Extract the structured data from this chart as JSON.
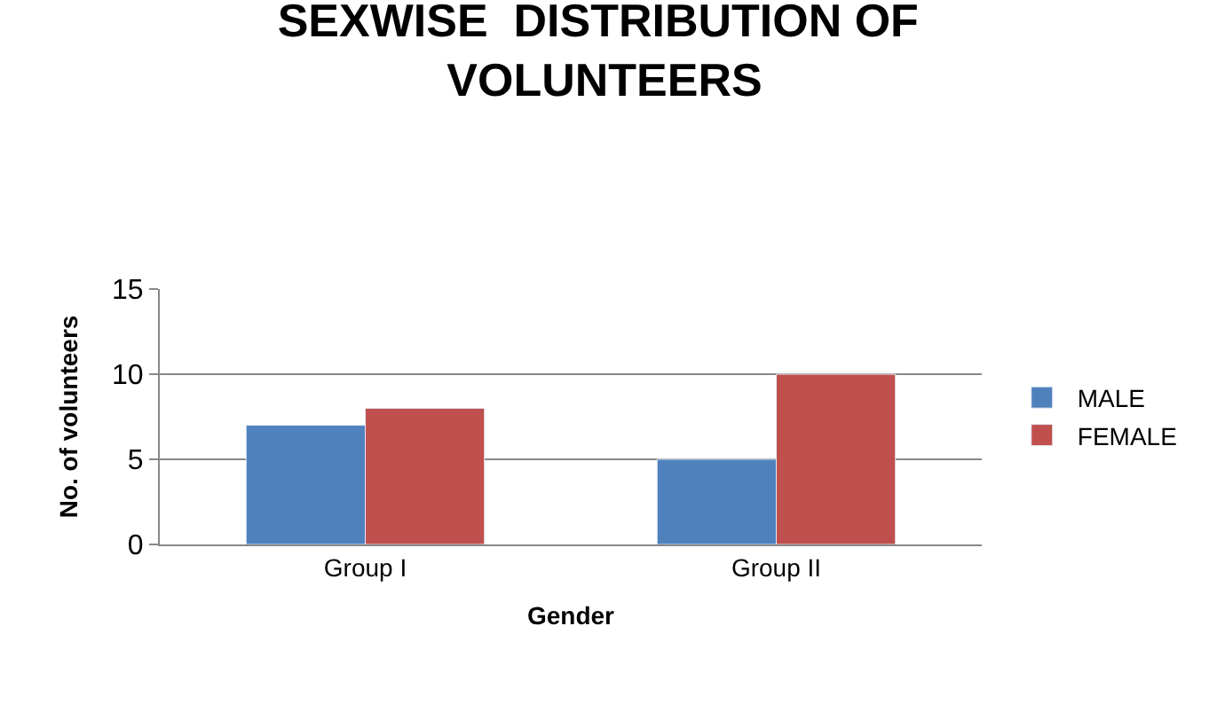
{
  "chart_data": {
    "type": "bar",
    "title": "SEXWISE  DISTRIBUTION OF VOLUNTEERS",
    "xlabel": "Gender",
    "ylabel": "No. of volunteers",
    "categories": [
      "Group I",
      "Group II"
    ],
    "series": [
      {
        "name": "MALE",
        "color": "#4f81bd",
        "values": [
          7,
          5
        ]
      },
      {
        "name": "FEMALE",
        "color": "#c0504d",
        "values": [
          8,
          10
        ]
      }
    ],
    "ylim": [
      0,
      15
    ],
    "yticks": [
      0,
      5,
      10,
      15
    ],
    "grid": "y",
    "legend": "right"
  }
}
